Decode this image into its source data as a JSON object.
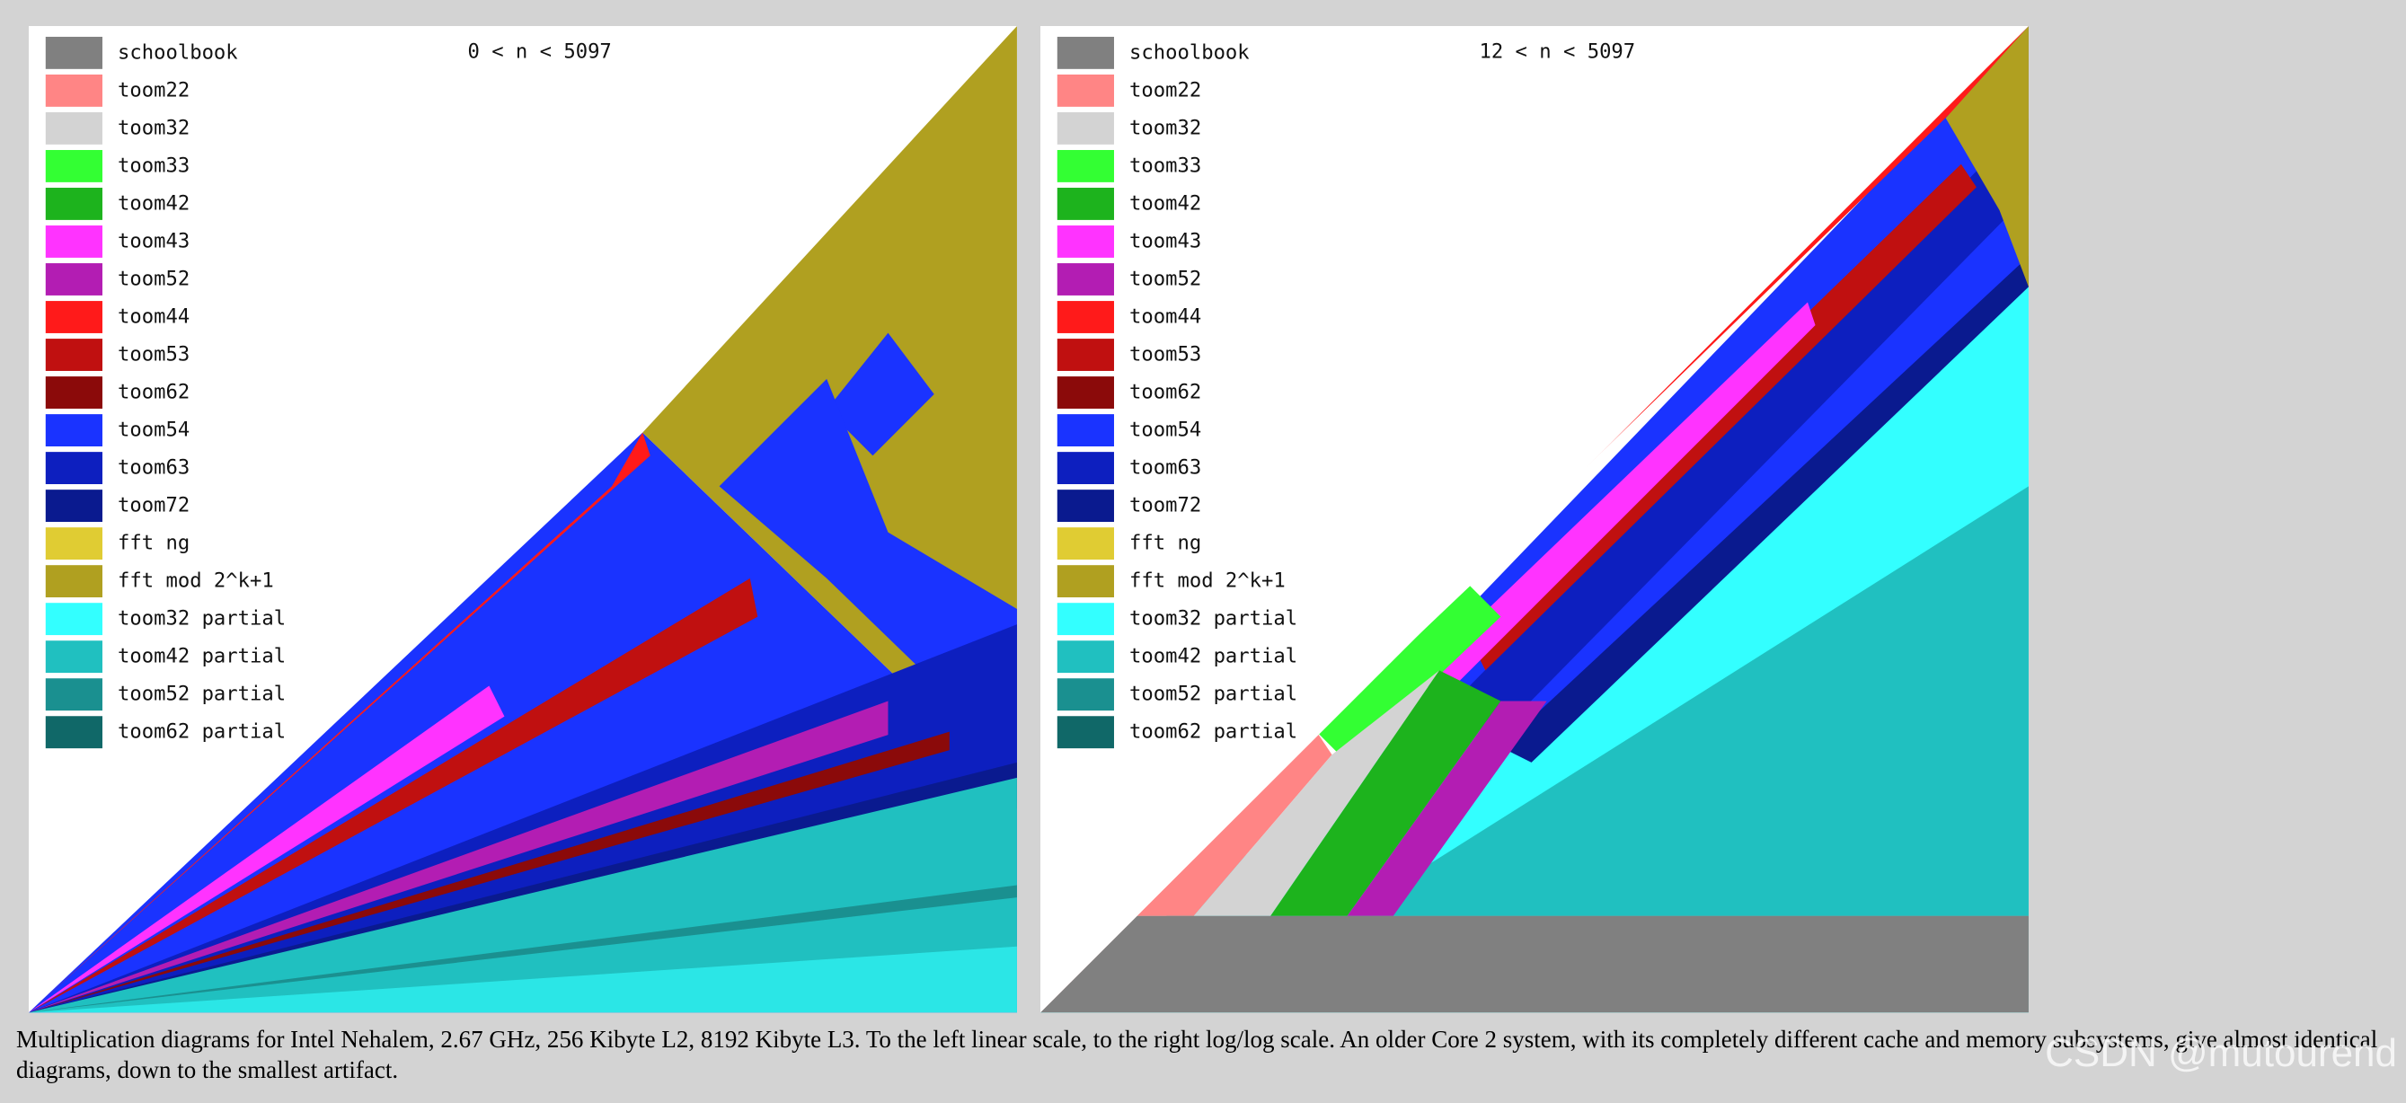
{
  "panels": [
    {
      "title": "0 < n < 5097"
    },
    {
      "title": "12 < n < 5097"
    }
  ],
  "legend": [
    {
      "name": "schoolbook",
      "color": "#808080"
    },
    {
      "name": "toom22",
      "color": "#ff8585"
    },
    {
      "name": "toom32",
      "color": "#d3d3d3"
    },
    {
      "name": "toom33",
      "color": "#33ff33"
    },
    {
      "name": "toom42",
      "color": "#1db31d"
    },
    {
      "name": "toom43",
      "color": "#ff33ff"
    },
    {
      "name": "toom52",
      "color": "#b31db3"
    },
    {
      "name": "toom44",
      "color": "#ff1a1a"
    },
    {
      "name": "toom53",
      "color": "#c01010"
    },
    {
      "name": "toom62",
      "color": "#8b0a0a"
    },
    {
      "name": "toom54",
      "color": "#1a33ff"
    },
    {
      "name": "toom63",
      "color": "#0d1fbf"
    },
    {
      "name": "toom72",
      "color": "#0a1a8f"
    },
    {
      "name": "fft ng",
      "color": "#e0cc33"
    },
    {
      "name": "fft mod 2^k+1",
      "color": "#b0a020"
    },
    {
      "name": "toom32 partial",
      "color": "#33ffff"
    },
    {
      "name": "toom42 partial",
      "color": "#20c0c0"
    },
    {
      "name": "toom52 partial",
      "color": "#1a9090"
    },
    {
      "name": "toom62 partial",
      "color": "#106868"
    }
  ],
  "caption": "Multiplication diagrams for Intel Nehalem, 2.67 GHz, 256 Kibyte L2, 8192 Kibyte L3. To the left linear scale, to the right log/log scale. An older Core 2 system, with its completely different cache and memory subsystems, give almost identical diagrams, down to the smallest artifact.",
  "watermark": "CSDN @mutourend"
}
